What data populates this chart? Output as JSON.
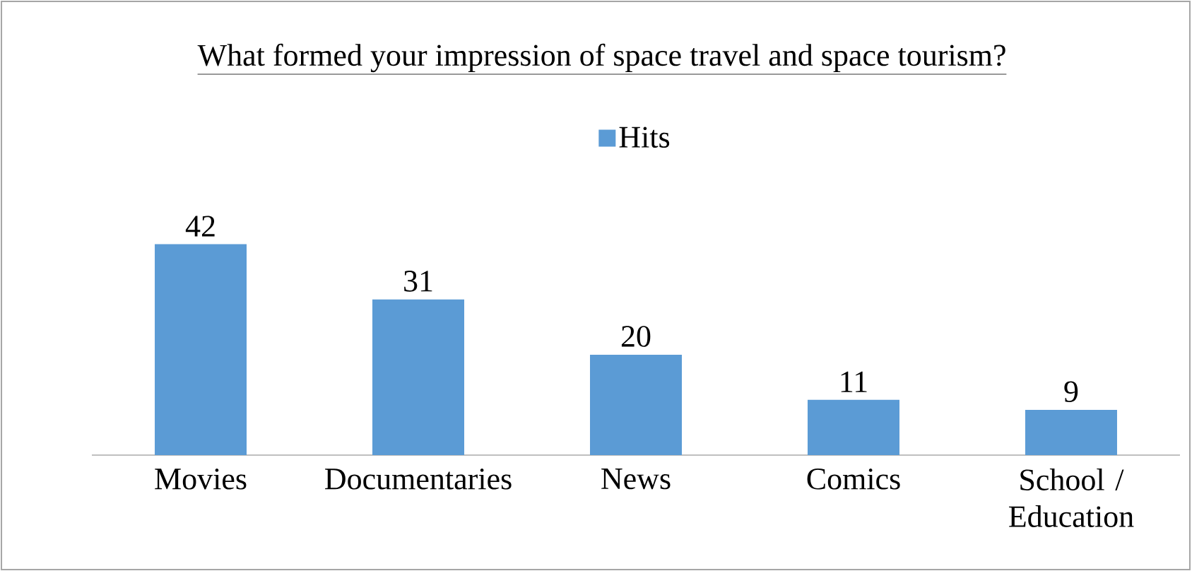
{
  "chart_data": {
    "type": "bar",
    "title": "What formed your impression of space travel and space tourism?",
    "categories": [
      "Movies",
      "Documentaries",
      "News",
      "Comics",
      "School / Education"
    ],
    "series": [
      {
        "name": "Hits",
        "color": "#5b9bd5",
        "values": [
          42,
          31,
          20,
          11,
          9
        ]
      }
    ],
    "data_labels": true,
    "legend": "top"
  }
}
